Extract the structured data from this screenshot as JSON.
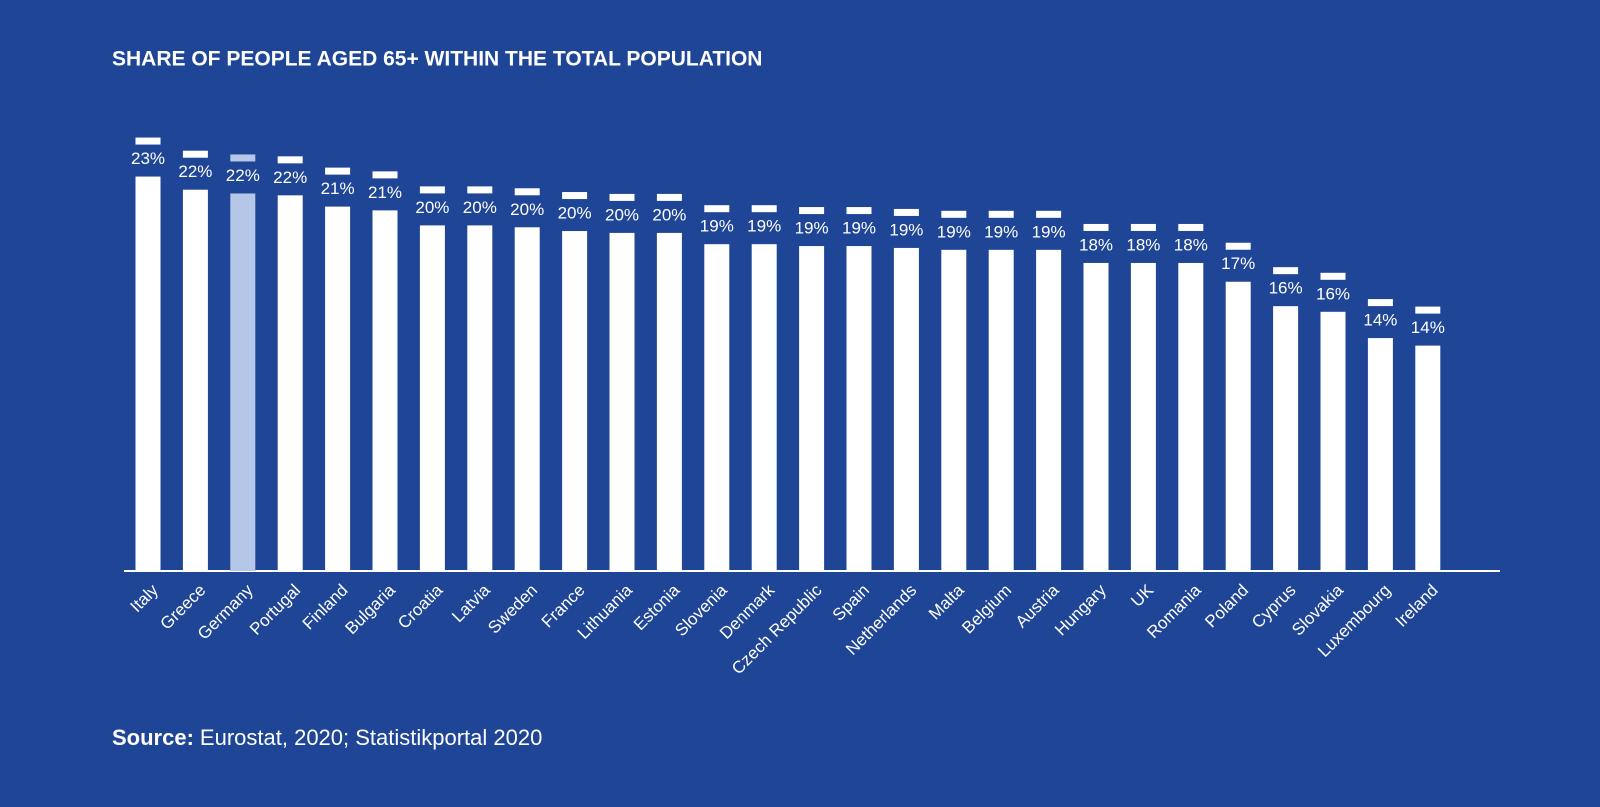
{
  "chart_data": {
    "type": "bar",
    "title": "SHARE OF PEOPLE AGED 65+ WITHIN THE TOTAL POPULATION",
    "categories": [
      "Italy",
      "Greece",
      "Germany",
      "Portugal",
      "Finland",
      "Bulgaria",
      "Croatia",
      "Latvia",
      "Sweden",
      "France",
      "Lithuania",
      "Estonia",
      "Slovenia",
      "Denmark",
      "Czech Republic",
      "Spain",
      "Netherlands",
      "Malta",
      "Belgium",
      "Austria",
      "Hungary",
      "UK",
      "Romania",
      "Poland",
      "Cyprus",
      "Slovakia",
      "Luxembourg",
      "Ireland"
    ],
    "values": [
      23.0,
      22.3,
      22.1,
      22.0,
      21.4,
      21.2,
      20.4,
      20.4,
      20.3,
      20.1,
      20.0,
      20.0,
      19.4,
      19.4,
      19.3,
      19.3,
      19.2,
      19.1,
      19.1,
      19.1,
      18.4,
      18.4,
      18.4,
      17.4,
      16.1,
      15.8,
      14.4,
      14.0
    ],
    "value_labels": [
      "23%",
      "22%",
      "22%",
      "22%",
      "21%",
      "21%",
      "20%",
      "20%",
      "20%",
      "20%",
      "20%",
      "20%",
      "19%",
      "19%",
      "19%",
      "19%",
      "19%",
      "19%",
      "19%",
      "19%",
      "18%",
      "18%",
      "18%",
      "17%",
      "16%",
      "16%",
      "14%",
      "14%"
    ],
    "colors": [
      "#ffffff",
      "#ffffff",
      "#b4c7e7",
      "#ffffff",
      "#ffffff",
      "#ffffff",
      "#ffffff",
      "#ffffff",
      "#ffffff",
      "#ffffff",
      "#ffffff",
      "#ffffff",
      "#ffffff",
      "#ffffff",
      "#ffffff",
      "#ffffff",
      "#ffffff",
      "#ffffff",
      "#ffffff",
      "#ffffff",
      "#ffffff",
      "#ffffff",
      "#ffffff",
      "#ffffff",
      "#ffffff",
      "#ffffff",
      "#ffffff",
      "#ffffff"
    ],
    "ylim": [
      2,
      25
    ],
    "source": {
      "label": "Source:",
      "text": "Eurostat, 2020; Statistikportal 2020"
    }
  }
}
